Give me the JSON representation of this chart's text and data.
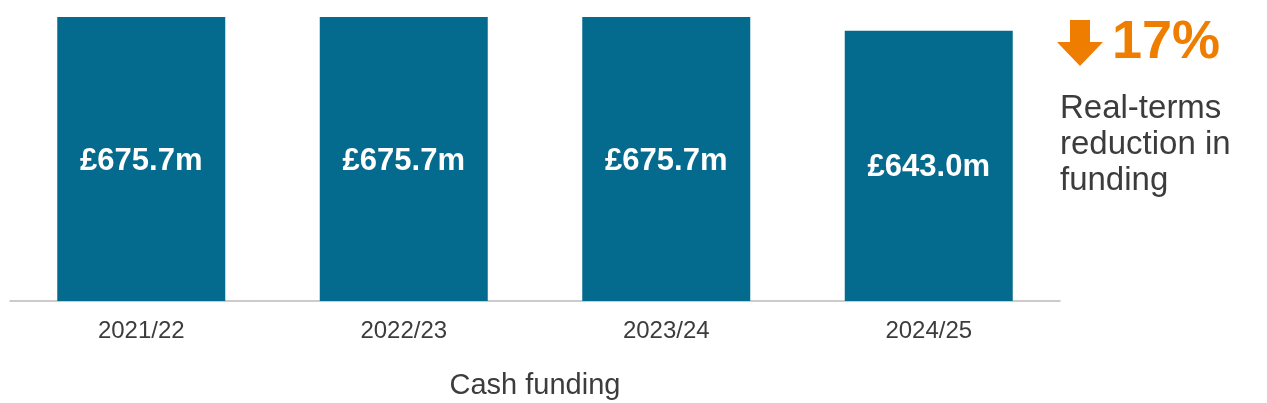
{
  "chart_data": {
    "type": "bar",
    "xlabel": "Cash funding",
    "categories": [
      "2021/22",
      "2022/23",
      "2023/24",
      "2024/25"
    ],
    "values": [
      675.7,
      675.7,
      675.7,
      643.0
    ],
    "value_labels": [
      "£675.7m",
      "£675.7m",
      "£675.7m",
      "£643.0m"
    ],
    "color": "#056b8e",
    "annotations": [
      "17%",
      "Real-terms reduction in funding"
    ]
  }
}
